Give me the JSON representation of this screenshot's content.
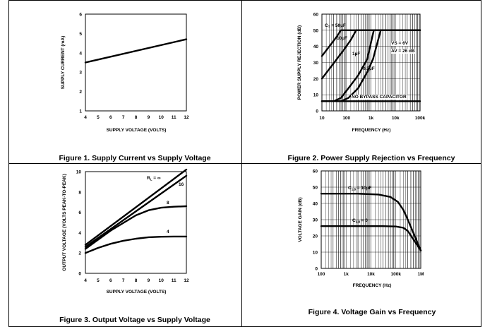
{
  "chart_data": [
    {
      "type": "line",
      "title": "",
      "caption": "Figure 1. Supply Current vs Supply Voltage",
      "xlabel": "SUPPLY VOLTAGE (VOLTS)",
      "ylabel": "SUPPLY CURRENT (mA)",
      "xlim": [
        4,
        12
      ],
      "ylim": [
        1,
        6
      ],
      "xscale": "linear",
      "grid": false,
      "xticks": [
        "4",
        "5",
        "6",
        "7",
        "8",
        "9",
        "10",
        "11",
        "12"
      ],
      "yticks": [
        "1",
        "2",
        "3",
        "4",
        "5",
        "6"
      ],
      "series": [
        {
          "name": "Supply current",
          "x": [
            4,
            12
          ],
          "y": [
            3.5,
            4.7
          ]
        }
      ]
    },
    {
      "type": "line",
      "title": "",
      "caption": "Figure 2. Power Supply Rejection vs Frequency",
      "xlabel": "FREQUENCY (Hz)",
      "ylabel": "POWER SUPPLY REJECTION (dB)",
      "xlim": [
        10,
        100000
      ],
      "ylim": [
        0,
        60
      ],
      "xscale": "log",
      "grid": true,
      "xticks": [
        "10",
        "100",
        "1k",
        "10k",
        "100k"
      ],
      "yticks": [
        "0",
        "10",
        "20",
        "30",
        "40",
        "50",
        "60"
      ],
      "annotations": [
        "VS = 6V",
        "AV = 26 dB"
      ],
      "series": [
        {
          "name": "CBYPASS = 50µF",
          "x": [
            10,
            20,
            40,
            60,
            100000
          ],
          "y": [
            34,
            40,
            46,
            50,
            50
          ]
        },
        {
          "name": "10µF",
          "x": [
            10,
            20,
            40,
            80,
            150,
            250,
            100000
          ],
          "y": [
            20,
            26,
            32,
            38,
            44,
            50,
            50
          ]
        },
        {
          "name": "1µF",
          "x": [
            10,
            30,
            60,
            120,
            300,
            700,
            1300,
            100000
          ],
          "y": [
            6,
            6,
            8,
            14,
            22,
            32,
            50,
            50
          ]
        },
        {
          "name": "0.5µF",
          "x": [
            10,
            60,
            120,
            300,
            700,
            1200,
            2500,
            100000
          ],
          "y": [
            6,
            6,
            8,
            14,
            24,
            32,
            50,
            50
          ]
        },
        {
          "name": "NO BYPASS CAPACITOR",
          "x": [
            10,
            100000
          ],
          "y": [
            6,
            6
          ]
        }
      ]
    },
    {
      "type": "line",
      "title": "",
      "caption": "Figure 3. Output Voltage vs Supply Voltage",
      "xlabel": "SUPPLY VOLTAGE (VOLTS)",
      "ylabel": "OUTPUT VOLTAGE (VOLTS PEAK-TO-PEAK)",
      "xlim": [
        4,
        12
      ],
      "ylim": [
        0,
        10
      ],
      "xscale": "linear",
      "grid": false,
      "xticks": [
        "4",
        "5",
        "6",
        "7",
        "8",
        "9",
        "10",
        "11",
        "12"
      ],
      "yticks": [
        "0",
        "2",
        "4",
        "6",
        "8",
        "10"
      ],
      "series": [
        {
          "name": "RL = ∞",
          "x": [
            4,
            12
          ],
          "y": [
            2.8,
            10.2
          ]
        },
        {
          "name": "16",
          "x": [
            4,
            12
          ],
          "y": [
            2.6,
            9.6
          ]
        },
        {
          "name": "8",
          "x": [
            4,
            6,
            8,
            9,
            10,
            11,
            12
          ],
          "y": [
            2.4,
            4.2,
            5.7,
            6.2,
            6.45,
            6.55,
            6.6
          ]
        },
        {
          "name": "4",
          "x": [
            4,
            5,
            6,
            7,
            8,
            9,
            10,
            11,
            12
          ],
          "y": [
            2.0,
            2.5,
            2.9,
            3.2,
            3.4,
            3.55,
            3.6,
            3.62,
            3.62
          ]
        }
      ]
    },
    {
      "type": "line",
      "title": "",
      "caption": "Figure 4. Voltage Gain vs Frequency",
      "xlabel": "FREQUENCY (Hz)",
      "ylabel": "VOLTAGE GAIN (dB)",
      "xlim": [
        100,
        1000000
      ],
      "ylim": [
        0,
        60
      ],
      "xscale": "log",
      "grid": true,
      "xticks": [
        "100",
        "1k",
        "10k",
        "100k",
        "1M"
      ],
      "yticks": [
        "0",
        "10",
        "20",
        "30",
        "40",
        "50",
        "60"
      ],
      "series": [
        {
          "name": "C1,8 = 10µF",
          "x": [
            100,
            3000,
            20000,
            60000,
            120000,
            200000,
            300000,
            500000,
            1000000
          ],
          "y": [
            46,
            46,
            45.5,
            44,
            41,
            36,
            30,
            22,
            11
          ]
        },
        {
          "name": "C1,8 = 0",
          "x": [
            100,
            30000,
            100000,
            200000,
            300000,
            500000,
            1000000
          ],
          "y": [
            26,
            26,
            25.8,
            25,
            23,
            18,
            11
          ]
        }
      ]
    }
  ]
}
